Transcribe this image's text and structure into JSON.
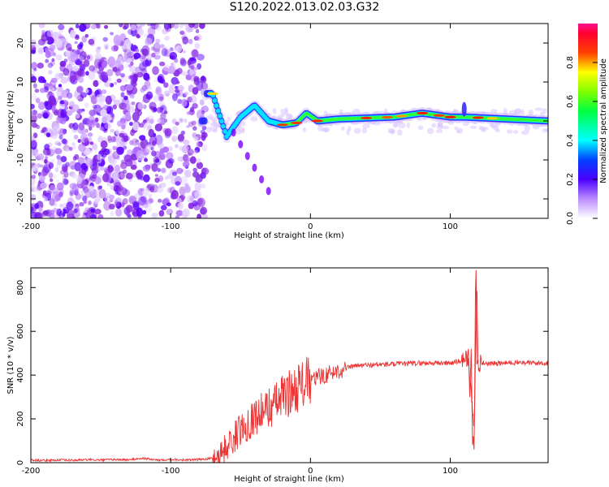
{
  "title": "S120.2022.013.02.03.G32",
  "chart_data": [
    {
      "type": "heatmap",
      "xlabel": "Height of straight line (km)",
      "ylabel": "Frequency (Hz)",
      "xlim": [
        -200,
        170
      ],
      "ylim": [
        -25,
        25
      ],
      "xticks": [
        -200,
        -100,
        0,
        100
      ],
      "yticks": [
        -20,
        -10,
        0,
        10,
        20
      ],
      "colorbar": {
        "label": "Normalized spectral amplitude",
        "range": [
          0,
          1
        ],
        "ticks": [
          "0.0",
          "0.2",
          "0.4",
          "0.6",
          "0.8"
        ]
      },
      "ridge": {
        "description_points": [
          {
            "x": -75,
            "y": 7
          },
          {
            "x": -70,
            "y": 7
          },
          {
            "x": -60,
            "y": -4
          },
          {
            "x": -50,
            "y": 1
          },
          {
            "x": -40,
            "y": 4
          },
          {
            "x": -30,
            "y": 0
          },
          {
            "x": -20,
            "y": -1
          },
          {
            "x": -10,
            "y": -0.5
          },
          {
            "x": -3,
            "y": 2
          },
          {
            "x": 5,
            "y": 0
          },
          {
            "x": 20,
            "y": 0.5
          },
          {
            "x": 60,
            "y": 1
          },
          {
            "x": 80,
            "y": 2
          },
          {
            "x": 100,
            "y": 1
          },
          {
            "x": 110,
            "y": 1
          },
          {
            "x": 140,
            "y": 0.5
          },
          {
            "x": 170,
            "y": 0
          }
        ]
      }
    },
    {
      "type": "line",
      "xlabel": "Height of straight line (km)",
      "ylabel": "SNR (10 * v/v)",
      "xlim": [
        -200,
        170
      ],
      "ylim": [
        0,
        890
      ],
      "xticks": [
        -200,
        -100,
        0,
        100
      ],
      "yticks": [
        0,
        200,
        400,
        600,
        800
      ],
      "color": "#ee3333",
      "series": [
        {
          "x": [
            -200,
            -190,
            -180,
            -170,
            -160,
            -150,
            -140,
            -130,
            -120,
            -110,
            -100,
            -90,
            -80,
            -70,
            -65,
            -60,
            -55,
            -50,
            -45,
            -40,
            -35,
            -30,
            -25,
            -20,
            -15,
            -10,
            -5,
            0,
            5,
            10,
            15,
            20,
            25,
            30,
            40,
            50,
            60,
            70,
            80,
            90,
            100,
            105,
            110,
            113,
            115,
            117,
            118,
            119,
            120,
            122,
            125,
            130,
            140,
            150,
            160,
            170
          ],
          "y": [
            12,
            10,
            12,
            11,
            13,
            12,
            14,
            13,
            20,
            12,
            15,
            12,
            14,
            20,
            40,
            70,
            110,
            150,
            180,
            210,
            230,
            250,
            270,
            300,
            320,
            340,
            360,
            370,
            390,
            400,
            410,
            420,
            430,
            440,
            445,
            448,
            450,
            452,
            455,
            455,
            455,
            460,
            470,
            480,
            300,
            150,
            420,
            880,
            450,
            455,
            455,
            452,
            455,
            458,
            455,
            455
          ]
        }
      ]
    }
  ]
}
